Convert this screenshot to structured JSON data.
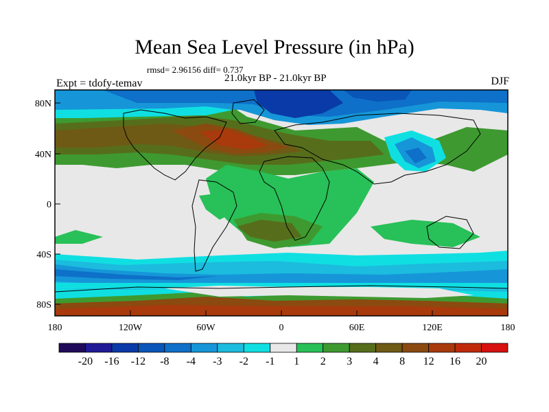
{
  "title": "Mean Sea Level Pressure (in hPa)",
  "stats": "rmsd= 2.96156 diff= 0.737",
  "period": "21.0kyr BP - 21.0kyr BP",
  "experiment": "Expt = tdofy-temav",
  "season": "DJF",
  "lat_ticks": [
    "80N",
    "40N",
    "0",
    "40S",
    "80S"
  ],
  "lon_ticks": [
    "180",
    "120W",
    "60W",
    "0",
    "60E",
    "120E",
    "180"
  ],
  "colorbar": {
    "labels": [
      "-20",
      "-16",
      "-12",
      "-8",
      "-4",
      "-3",
      "-2",
      "-1",
      "1",
      "2",
      "3",
      "4",
      "8",
      "12",
      "16",
      "20"
    ],
    "colors": [
      "#1f0a5a",
      "#201a96",
      "#0a3aa8",
      "#0a55b8",
      "#0e70c8",
      "#1696d8",
      "#1cbcde",
      "#10dfe2",
      "#e8e8e8",
      "#28c058",
      "#3e9a30",
      "#566e1c",
      "#6e5a14",
      "#8a4a10",
      "#a83a0c",
      "#c02a0a",
      "#d81010"
    ]
  }
}
